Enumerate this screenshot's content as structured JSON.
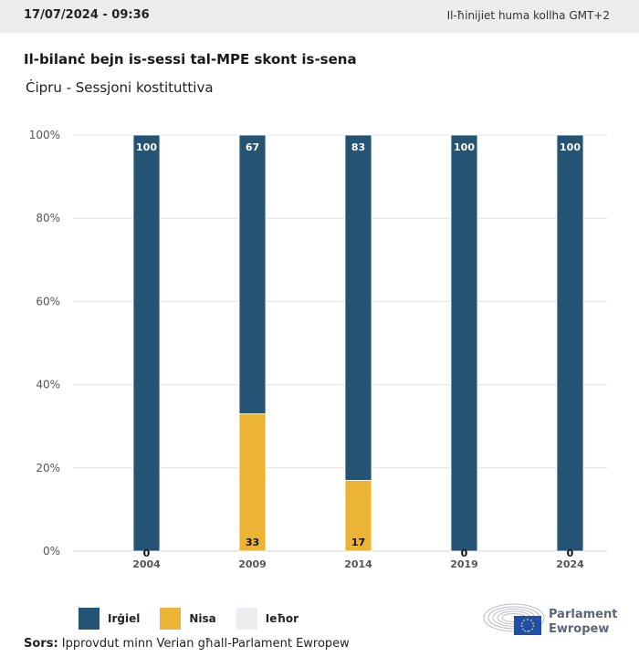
{
  "header": {
    "datetime": "17/07/2024 - 09:36",
    "timezone_note": "Il-ħinijiet huma kollha GMT+2"
  },
  "title": "Il-bilanċ bejn is-sessi tal-MPE skont is-sena",
  "subtitle": "Ċipru - Sessjoni kostituttiva",
  "colors": {
    "men": "#255373",
    "women": "#ebb434",
    "other": "#eceef1",
    "grid": "#e2e2e2",
    "axis_text": "#555555"
  },
  "chart_data": {
    "type": "bar",
    "stacked": true,
    "title": "Il-bilanċ bejn is-sessi tal-MPE skont is-sena",
    "subtitle": "Ċipru - Sessjoni kostituttiva",
    "categories": [
      "2004",
      "2009",
      "2014",
      "2019",
      "2024"
    ],
    "series": [
      {
        "name": "Irġiel",
        "color": "#255373",
        "values": [
          100,
          67,
          83,
          100,
          100
        ]
      },
      {
        "name": "Nisa",
        "color": "#ebb434",
        "values": [
          0,
          33,
          17,
          0,
          0
        ]
      },
      {
        "name": "Ieħor",
        "color": "#eceef1",
        "values": [
          0,
          0,
          0,
          0,
          0
        ]
      }
    ],
    "yticks": [
      "0%",
      "20%",
      "40%",
      "60%",
      "80%",
      "100%"
    ],
    "ylim": [
      0,
      100
    ],
    "xlabel": "",
    "ylabel": "",
    "grid": true,
    "legend_position": "bottom-left"
  },
  "legend": [
    {
      "label": "Irġiel",
      "color": "#255373"
    },
    {
      "label": "Nisa",
      "color": "#ebb434"
    },
    {
      "label": "Ieħor",
      "color": "#eceef1"
    }
  ],
  "source": {
    "label": "Sors:",
    "text": "Ipprovdut minn Verian għall-Parlament Ewropew"
  },
  "logo": {
    "line1": "Parlament",
    "line2": "Ewropew"
  }
}
